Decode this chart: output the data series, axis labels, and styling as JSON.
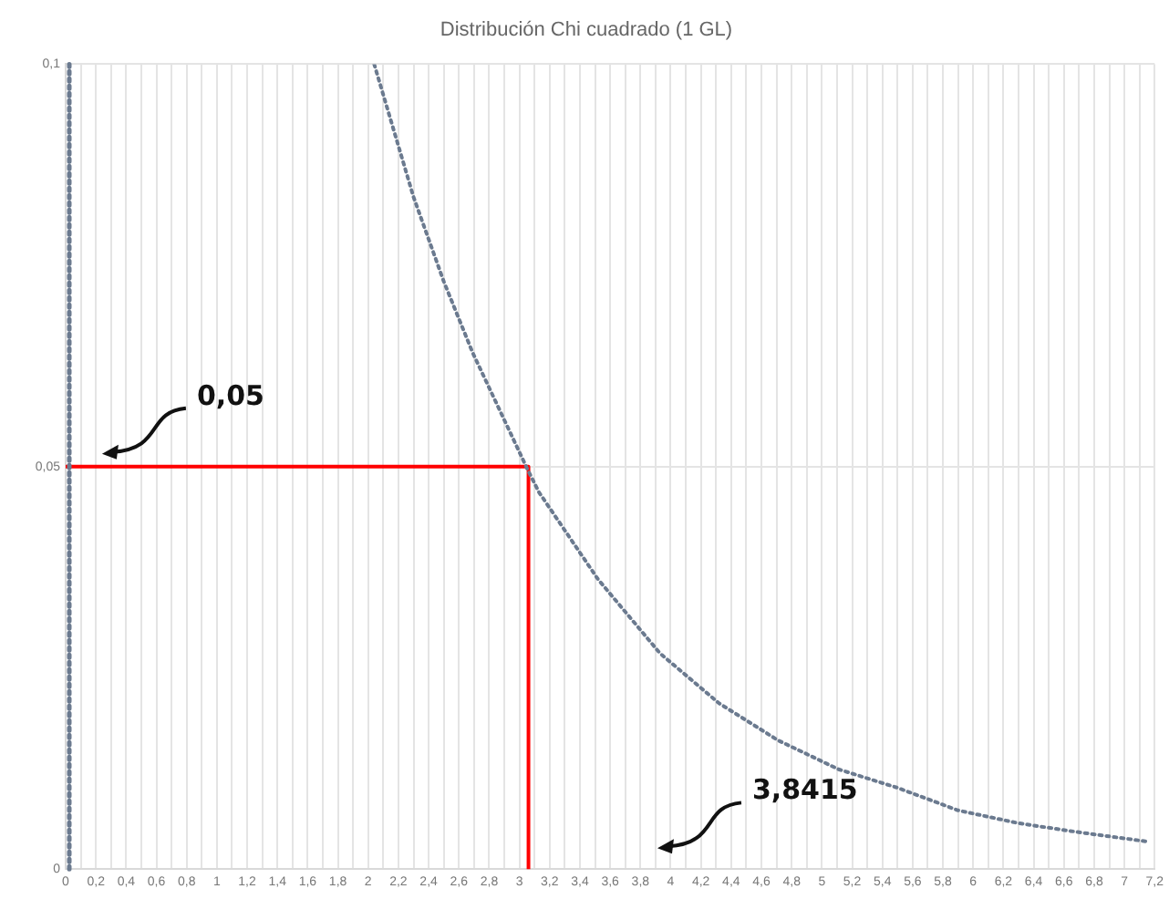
{
  "chart_data": {
    "type": "line",
    "title": "Distribución Chi cuadrado (1 GL)",
    "xlim": [
      0,
      7.2
    ],
    "xticks": [
      0,
      {
        "value": 0.1,
        "label": null
      },
      {
        "value": 0.2,
        "label": "0,2"
      },
      {
        "value": 0.3,
        "label": null
      },
      {
        "value": 0.4,
        "label": "0,4"
      },
      {
        "value": 0.5,
        "label": null
      },
      {
        "value": 0.6,
        "label": "0,6"
      },
      {
        "value": 0.7,
        "label": null
      },
      {
        "value": 0.8,
        "label": "0,8"
      },
      {
        "value": 0.9,
        "label": null
      },
      1,
      {
        "value": 1.1,
        "label": null
      },
      {
        "value": 1.2,
        "label": "1,2"
      },
      {
        "value": 1.3,
        "label": null
      },
      {
        "value": 1.4,
        "label": "1,4"
      },
      {
        "value": 1.5,
        "label": null
      },
      {
        "value": 1.6,
        "label": "1,6"
      },
      {
        "value": 1.7,
        "label": null
      },
      {
        "value": 1.8,
        "label": "1,8"
      },
      {
        "value": 1.9,
        "label": null
      },
      2,
      {
        "value": 2.1,
        "label": null
      },
      {
        "value": 2.2,
        "label": "2,2"
      },
      {
        "value": 2.3,
        "label": null
      },
      {
        "value": 2.4,
        "label": "2,4"
      },
      {
        "value": 2.5,
        "label": null
      },
      {
        "value": 2.6,
        "label": "2,6"
      },
      {
        "value": 2.7,
        "label": null
      },
      {
        "value": 2.8,
        "label": "2,8"
      },
      {
        "value": 2.9,
        "label": null
      },
      3,
      {
        "value": 3.1,
        "label": null
      },
      {
        "value": 3.2,
        "label": "3,2"
      },
      {
        "value": 3.3,
        "label": null
      },
      {
        "value": 3.4,
        "label": "3,4"
      },
      {
        "value": 3.5,
        "label": null
      },
      {
        "value": 3.6,
        "label": "3,6"
      },
      {
        "value": 3.7,
        "label": null
      },
      {
        "value": 3.8,
        "label": "3,8"
      },
      {
        "value": 3.9,
        "label": null
      },
      4,
      {
        "value": 4.1,
        "label": null
      },
      {
        "value": 4.2,
        "label": "4,2"
      },
      {
        "value": 4.3,
        "label": null
      },
      {
        "value": 4.4,
        "label": "4,4"
      },
      {
        "value": 4.5,
        "label": null
      },
      {
        "value": 4.6,
        "label": "4,6"
      },
      {
        "value": 4.7,
        "label": null
      },
      {
        "value": 4.8,
        "label": "4,8"
      },
      {
        "value": 4.9,
        "label": null
      },
      5,
      {
        "value": 5.1,
        "label": null
      },
      {
        "value": 5.2,
        "label": "5,2"
      },
      {
        "value": 5.3,
        "label": null
      },
      {
        "value": 5.4,
        "label": "5,4"
      },
      {
        "value": 5.5,
        "label": null
      },
      {
        "value": 5.6,
        "label": "5,6"
      },
      {
        "value": 5.7,
        "label": null
      },
      {
        "value": 5.8,
        "label": "5,8"
      },
      {
        "value": 5.9,
        "label": null
      },
      6,
      {
        "value": 6.1,
        "label": null
      },
      {
        "value": 6.2,
        "label": "6,2"
      },
      {
        "value": 6.3,
        "label": null
      },
      {
        "value": 6.4,
        "label": "6,4"
      },
      {
        "value": 6.5,
        "label": null
      },
      {
        "value": 6.6,
        "label": "6,6"
      },
      {
        "value": 6.7,
        "label": null
      },
      {
        "value": 6.8,
        "label": "6,8"
      },
      {
        "value": 6.9,
        "label": null
      },
      7,
      {
        "value": 7.1,
        "label": null
      },
      {
        "value": 7.2,
        "label": "7,2"
      }
    ],
    "ylim": [
      0,
      0.1
    ],
    "yticks": [
      0,
      {
        "value": 0.05,
        "label": "0,05"
      },
      {
        "value": 0.1,
        "label": "0,1"
      }
    ],
    "grid": true,
    "legend": false,
    "marker": "none",
    "series": [
      {
        "color": "#6b7a8f",
        "line_style": "dotted",
        "x": [
          2.04,
          2.3,
          2.5,
          2.69,
          3.05,
          3.13,
          3.52,
          3.93,
          4.32,
          4.71,
          5.11,
          5.5,
          5.9,
          6.3,
          6.69,
          7.16
        ],
        "values": [
          0.1,
          0.0835,
          0.073,
          0.0642,
          0.0498,
          0.0468,
          0.036,
          0.0268,
          0.0206,
          0.016,
          0.0124,
          0.0101,
          0.0073,
          0.0057,
          0.0046,
          0.0034
        ]
      },
      {
        "color": "#ff0000",
        "line_style": "solid",
        "x": [
          0,
          3.06,
          3.06
        ],
        "values": [
          0.05,
          0.05,
          0
        ]
      }
    ],
    "ref_lines": [
      {
        "axis": "x",
        "value": 0,
        "color": "#6b7a8f",
        "line_style": "dotted"
      }
    ],
    "annotations": [
      "0,05",
      "3,8415"
    ]
  }
}
